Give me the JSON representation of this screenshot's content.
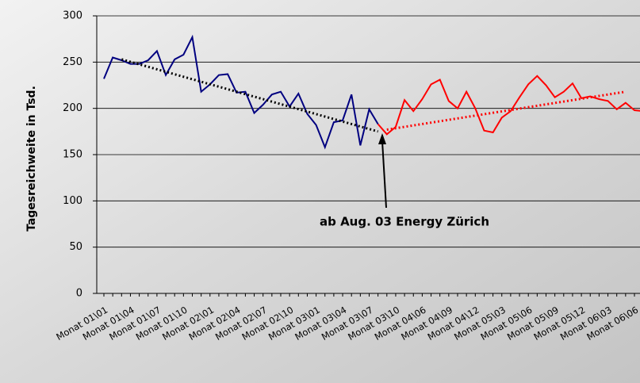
{
  "chart_data": {
    "type": "line",
    "y_label": "Tagesreichweite in Tsd.",
    "annotation": "ab Aug. 03 Energy Zürich",
    "categories": [
      "Monat 01\\01",
      null,
      null,
      "Monat 01\\04",
      null,
      null,
      "Monat 01\\07",
      null,
      null,
      "Monat 01\\10",
      null,
      null,
      "Monat 02\\01",
      null,
      null,
      "Monat 02\\04",
      null,
      null,
      "Monat 02\\07",
      null,
      null,
      "Monat 02\\10",
      null,
      null,
      "Monat 03\\01",
      null,
      null,
      "Monat 03\\04",
      null,
      null,
      "Monat 03\\07",
      null,
      null,
      "Monat 03\\10",
      null,
      null,
      "Monat 04\\06",
      null,
      null,
      "Monat 04\\09",
      null,
      null,
      "Monat 04\\12",
      null,
      null,
      "Monat 05\\03",
      null,
      null,
      "Monat 05\\06",
      null,
      null,
      "Monat 05\\09",
      null,
      null,
      "Monat 05\\12",
      null,
      null,
      "Monat 06\\03",
      null,
      null,
      "Monat 06\\06",
      null
    ],
    "series": [
      {
        "color": "#000080",
        "values": [
          232,
          255,
          252,
          248,
          248,
          252,
          262,
          236,
          253,
          258,
          277,
          218,
          226,
          236,
          237,
          217,
          218,
          195,
          204,
          215,
          218,
          202,
          216,
          194,
          182,
          158,
          185,
          187,
          215,
          160,
          199,
          183,
          null,
          null,
          null,
          null,
          null,
          null,
          null,
          null,
          null,
          null,
          null,
          null,
          null,
          null,
          null,
          null,
          null,
          null,
          null,
          null,
          null,
          null,
          null,
          null,
          null,
          null,
          null,
          null,
          null,
          null
        ]
      },
      {
        "color": "#ff0000",
        "values": [
          null,
          null,
          null,
          null,
          null,
          null,
          null,
          null,
          null,
          null,
          null,
          null,
          null,
          null,
          null,
          null,
          null,
          null,
          null,
          null,
          null,
          null,
          null,
          null,
          null,
          null,
          null,
          null,
          null,
          null,
          null,
          183,
          172,
          180,
          209,
          197,
          210,
          226,
          231,
          208,
          200,
          218,
          200,
          176,
          174,
          190,
          197,
          212,
          226,
          235,
          225,
          212,
          218,
          227,
          211,
          213,
          210,
          208,
          199,
          206,
          198,
          197
        ]
      }
    ],
    "trendlines": [
      {
        "color": "#000000",
        "x": [
          2,
          31
        ],
        "values": [
          253,
          175
        ]
      },
      {
        "color": "#ff0000",
        "x": [
          32,
          59
        ],
        "values": [
          177,
          218
        ]
      }
    ],
    "ylim": [
      0,
      300
    ],
    "yticks": [
      0,
      50,
      100,
      150,
      200,
      250,
      300
    ],
    "grid": true
  }
}
